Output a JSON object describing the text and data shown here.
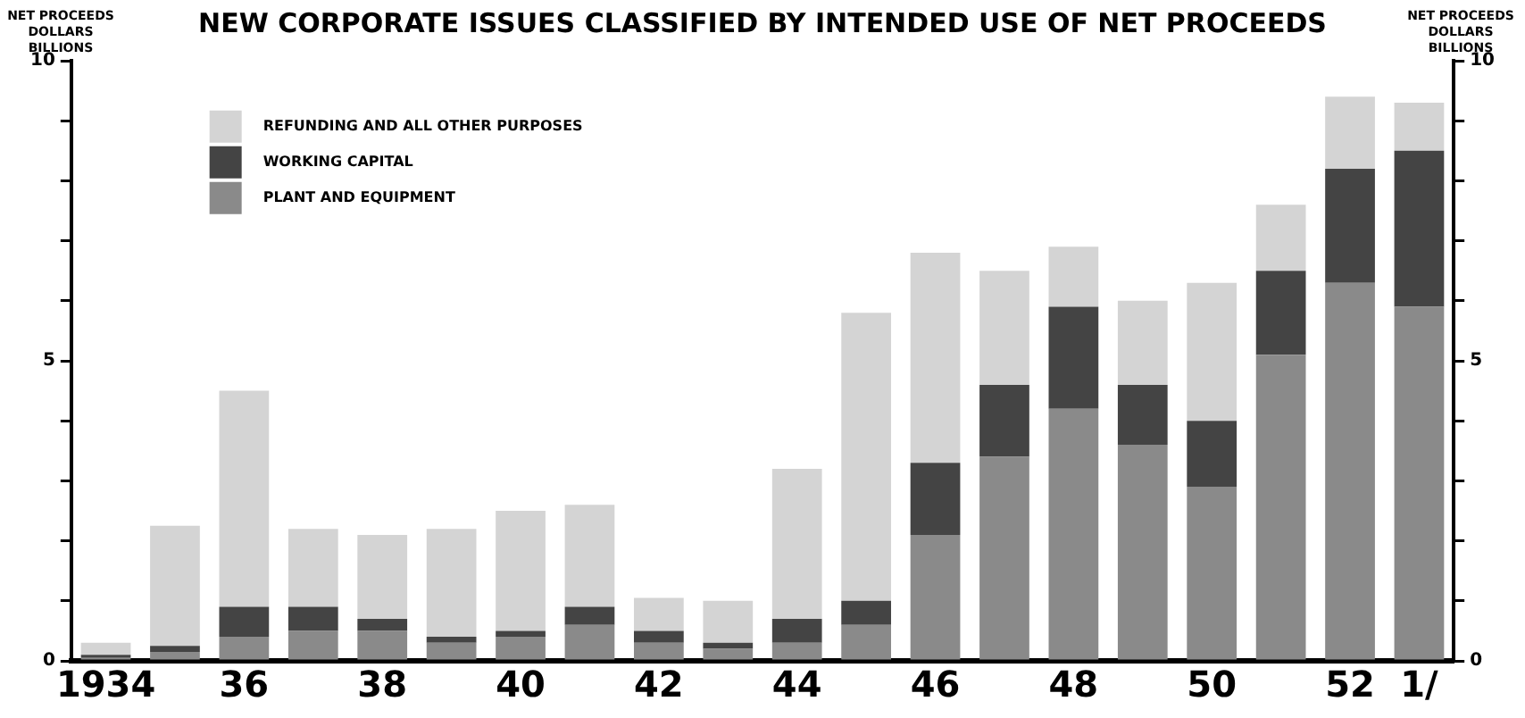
{
  "chart_data": {
    "type": "bar",
    "title": "NEW CORPORATE ISSUES CLASSIFIED BY INTENDED USE OF NET PROCEEDS",
    "ylabel": "NET PROCEEDS DOLLARS BILLIONS",
    "y2label": "NET PROCEEDS DOLLARS BILLIONS",
    "categories": [
      "1934",
      null,
      "36",
      null,
      "38",
      null,
      "40",
      null,
      "42",
      null,
      "44",
      null,
      "46",
      null,
      "48",
      null,
      "50",
      null,
      "52",
      "1/"
    ],
    "stacked": true,
    "series": [
      {
        "name": "PLANT AND EQUIPMENT",
        "color": "#8a8a8a",
        "values": [
          0.05,
          0.15,
          0.4,
          0.5,
          0.5,
          0.3,
          0.4,
          0.6,
          0.3,
          0.2,
          0.3,
          0.6,
          2.1,
          3.4,
          4.2,
          3.6,
          2.9,
          5.1,
          6.3,
          5.9
        ]
      },
      {
        "name": "WORKING CAPITAL",
        "color": "#444444",
        "values": [
          0.05,
          0.1,
          0.5,
          0.4,
          0.2,
          0.1,
          0.1,
          0.3,
          0.2,
          0.1,
          0.4,
          0.4,
          1.2,
          1.2,
          1.7,
          1.0,
          1.1,
          1.4,
          1.9,
          2.6
        ]
      },
      {
        "name": "REFUNDING AND ALL OTHER PURPOSES",
        "color": "#d4d4d4",
        "values": [
          0.2,
          2.0,
          3.6,
          1.3,
          1.4,
          1.8,
          2.0,
          1.7,
          0.55,
          0.7,
          2.5,
          4.8,
          3.5,
          1.9,
          1.0,
          1.4,
          2.3,
          1.1,
          1.2,
          0.8
        ]
      }
    ],
    "ylim": [
      0,
      10
    ],
    "yticks": [
      0,
      {
        "value": 1,
        "label": null
      },
      {
        "value": 2,
        "label": null
      },
      {
        "value": 3,
        "label": null
      },
      {
        "value": 4,
        "label": null
      },
      5,
      {
        "value": 6,
        "label": null
      },
      {
        "value": 7,
        "label": null
      },
      {
        "value": 8,
        "label": null
      },
      {
        "value": 9,
        "label": null
      },
      10
    ],
    "y2lim": [
      0,
      10
    ],
    "y2ticks": [
      0,
      {
        "value": 1,
        "label": null
      },
      {
        "value": 2,
        "label": null
      },
      {
        "value": 3,
        "label": null
      },
      {
        "value": 4,
        "label": null
      },
      5,
      {
        "value": 6,
        "label": null
      },
      {
        "value": 7,
        "label": null
      },
      {
        "value": 8,
        "label": null
      },
      {
        "value": 9,
        "label": null
      },
      10
    ],
    "grid": false,
    "legend": "top left"
  }
}
